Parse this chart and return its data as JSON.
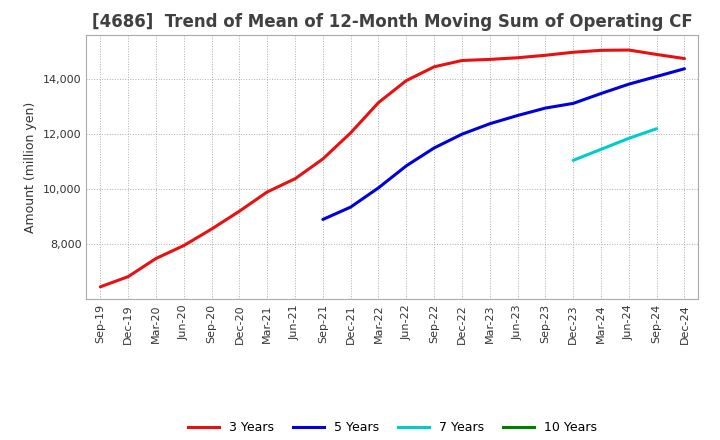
{
  "title": "[4686]  Trend of Mean of 12-Month Moving Sum of Operating CF",
  "ylabel": "Amount (million yen)",
  "background_color": "#ffffff",
  "plot_bg_color": "#ffffff",
  "series": {
    "3 Years": {
      "color": "#e81010",
      "x": [
        "Sep-19",
        "Dec-19",
        "Mar-20",
        "Jun-20",
        "Sep-20",
        "Dec-20",
        "Mar-21",
        "Jun-21",
        "Sep-21",
        "Dec-21",
        "Mar-22",
        "Jun-22",
        "Sep-22",
        "Dec-22",
        "Mar-23",
        "Jun-23",
        "Sep-23",
        "Dec-23",
        "Mar-24",
        "Jun-24",
        "Sep-24",
        "Dec-24"
      ],
      "y": [
        6450,
        6820,
        7480,
        7950,
        8550,
        9200,
        9900,
        10380,
        11100,
        12050,
        13150,
        13950,
        14450,
        14680,
        14720,
        14780,
        14870,
        14980,
        15050,
        15060,
        14900,
        14750
      ]
    },
    "5 Years": {
      "color": "#0000dd",
      "x": [
        "Sep-21",
        "Dec-21",
        "Mar-22",
        "Jun-22",
        "Sep-22",
        "Dec-22",
        "Mar-23",
        "Jun-23",
        "Sep-23",
        "Dec-23",
        "Mar-24",
        "Jun-24",
        "Sep-24",
        "Dec-24"
      ],
      "y": [
        8900,
        9350,
        10050,
        10850,
        11500,
        12000,
        12380,
        12680,
        12950,
        13120,
        13480,
        13820,
        14100,
        14380
      ]
    },
    "7 Years": {
      "color": "#00cccc",
      "x": [
        "Dec-23",
        "Mar-24",
        "Jun-24",
        "Sep-24"
      ],
      "y": [
        11050,
        11450,
        11850,
        12200
      ]
    },
    "10 Years": {
      "color": "#008000",
      "x": [],
      "y": []
    }
  },
  "ylim": [
    6000,
    15600
  ],
  "yticks": [
    8000,
    10000,
    12000,
    14000
  ],
  "grid_color": "#999999",
  "legend_labels": [
    "3 Years",
    "5 Years",
    "7 Years",
    "10 Years"
  ],
  "legend_colors": [
    "#e81010",
    "#0000dd",
    "#00cccc",
    "#008000"
  ],
  "title_color": "#404040",
  "title_fontsize": 12,
  "tick_fontsize": 8,
  "ylabel_fontsize": 9
}
